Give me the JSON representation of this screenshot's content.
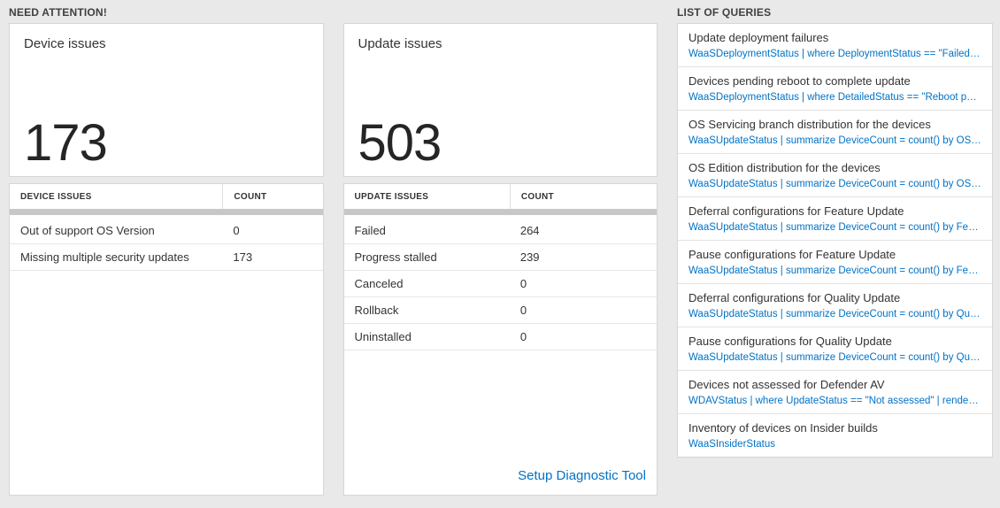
{
  "sections": {
    "need_attention": "NEED ATTENTION!",
    "list_of_queries": "LIST OF QUERIES"
  },
  "device_card": {
    "title": "Device issues",
    "count": "173",
    "headers": [
      "DEVICE ISSUES",
      "COUNT"
    ],
    "rows": [
      {
        "label": "Out of support OS Version",
        "count": "0"
      },
      {
        "label": "Missing multiple security updates",
        "count": "173"
      }
    ]
  },
  "update_card": {
    "title": "Update issues",
    "count": "503",
    "headers": [
      "UPDATE ISSUES",
      "COUNT"
    ],
    "rows": [
      {
        "label": "Failed",
        "count": "264"
      },
      {
        "label": "Progress stalled",
        "count": "239"
      },
      {
        "label": "Canceled",
        "count": "0"
      },
      {
        "label": "Rollback",
        "count": "0"
      },
      {
        "label": "Uninstalled",
        "count": "0"
      }
    ],
    "footer_link": "Setup Diagnostic Tool"
  },
  "queries": {
    "items": [
      {
        "title": "Update deployment failures",
        "query": "WaaSDeploymentStatus | where DeploymentStatus == \"Failed\" |..."
      },
      {
        "title": "Devices pending reboot to complete update",
        "query": "WaaSDeploymentStatus | where DetailedStatus == \"Reboot pend..."
      },
      {
        "title": "OS Servicing branch distribution for the devices",
        "query": "WaaSUpdateStatus | summarize DeviceCount = count() by OSSer..."
      },
      {
        "title": "OS Edition distribution for the devices",
        "query": "WaaSUpdateStatus | summarize DeviceCount = count() by OSEdit..."
      },
      {
        "title": "Deferral configurations for Feature Update",
        "query": "WaaSUpdateStatus | summarize DeviceCount = count() by Featur..."
      },
      {
        "title": "Pause configurations for Feature Update",
        "query": "WaaSUpdateStatus | summarize DeviceCount = count() by Featur..."
      },
      {
        "title": "Deferral configurations for Quality Update",
        "query": "WaaSUpdateStatus | summarize DeviceCount = count() by Qualit..."
      },
      {
        "title": "Pause configurations for Quality Update",
        "query": "WaaSUpdateStatus | summarize DeviceCount = count() by Qualit..."
      },
      {
        "title": "Devices not assessed for Defender AV",
        "query": "WDAVStatus | where UpdateStatus == \"Not assessed\" | render ta..."
      },
      {
        "title": "Inventory of devices on Insider builds",
        "query": "WaaSInsiderStatus"
      }
    ]
  },
  "colors": {
    "page_bg": "#e9e9e9",
    "tile_bg": "#ffffff",
    "tile_border": "#d6d6d6",
    "text_dark": "#333333",
    "link_blue": "#0072c6",
    "scrollbar_gray": "#c7c7c7"
  }
}
